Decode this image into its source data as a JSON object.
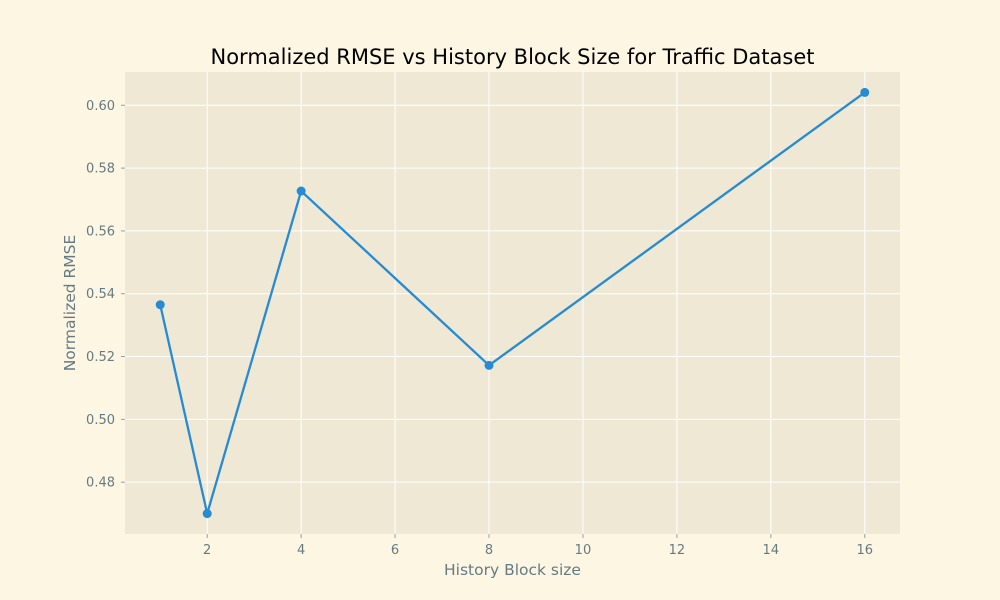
{
  "colors": {
    "figure_background": "#fdf6e3",
    "plot_background": "#eee8d5",
    "grid": "#ffffff",
    "line": "#268bd2",
    "text": "#657b83"
  },
  "chart_data": {
    "type": "line",
    "title": "Normalized RMSE vs History Block Size for Traffic Dataset",
    "xlabel": "History Block size",
    "ylabel": "Normalized RMSE",
    "x": [
      1,
      2,
      4,
      8,
      16
    ],
    "series": [
      {
        "name": "",
        "values": [
          0.5365,
          0.47,
          0.5727,
          0.5172,
          0.6041
        ],
        "marker": "circle"
      }
    ],
    "xlim": [
      0.25,
      16.75
    ],
    "ylim": [
      0.4635,
      0.6106
    ],
    "xticks": [
      2,
      4,
      6,
      8,
      10,
      12,
      14,
      16
    ],
    "yticks": [
      0.48,
      0.5,
      0.52,
      0.54,
      0.56,
      0.58,
      0.6
    ],
    "ytick_labels": [
      "0.48",
      "0.50",
      "0.52",
      "0.54",
      "0.56",
      "0.58",
      "0.60"
    ],
    "grid": true,
    "legend": "none"
  }
}
